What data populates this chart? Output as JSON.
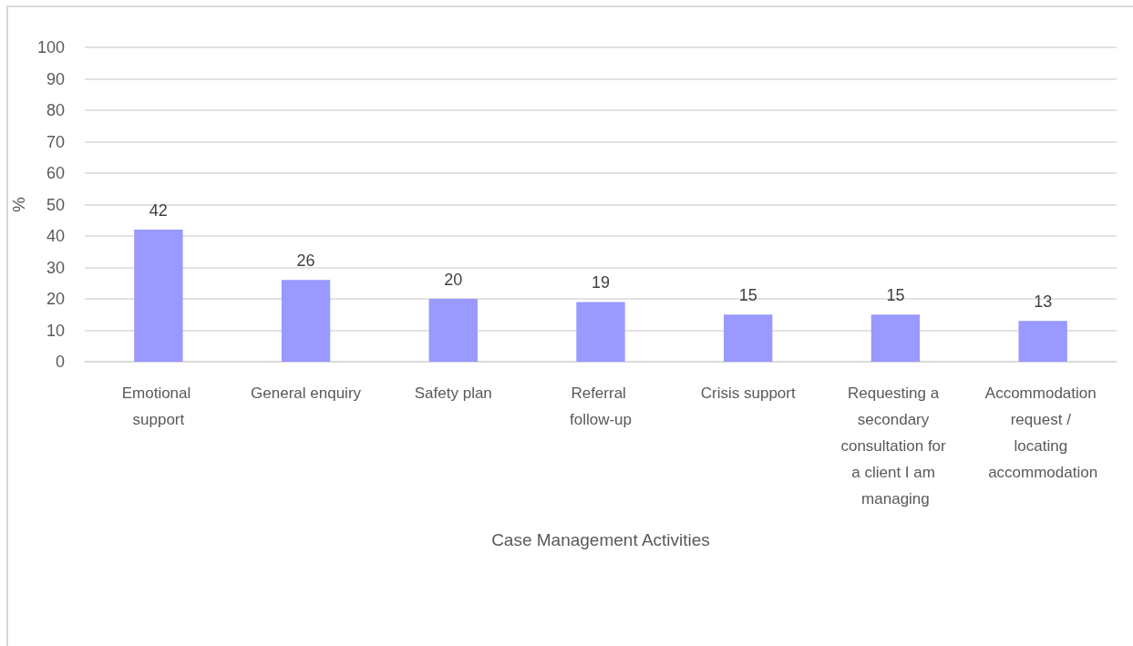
{
  "chart_data": {
    "type": "bar",
    "xlabel": "Case Management Activities",
    "ylabel": "%",
    "categories": [
      "Emotional support",
      "General enquiry",
      "Safety plan",
      "Referral follow-up",
      "Crisis support",
      "Requesting a secondary consultation for a client I am managing",
      "Accommodation request / locating accommodation"
    ],
    "values": [
      42,
      26,
      20,
      19,
      15,
      15,
      13
    ],
    "color": "#9999ff",
    "ylim": [
      0,
      100
    ],
    "yticks": [
      0,
      10,
      20,
      30,
      40,
      50,
      60,
      70,
      80,
      90,
      100
    ],
    "grid": "y",
    "data_labels": true
  }
}
